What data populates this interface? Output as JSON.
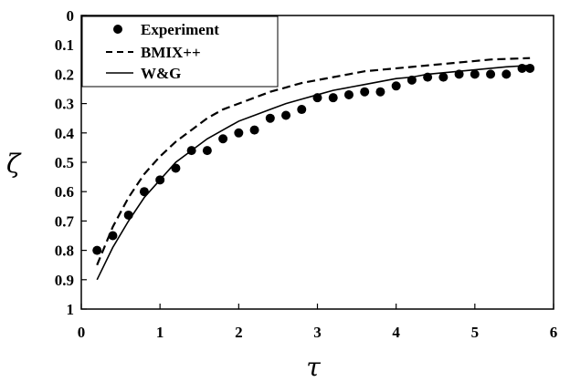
{
  "chart_data": {
    "type": "line",
    "title": "",
    "xlabel": "τ",
    "ylabel": "ζ",
    "xlim": [
      0,
      6
    ],
    "ylim": [
      0,
      1
    ],
    "y_inverted": true,
    "x_ticks": [
      "0",
      "1",
      "2",
      "3",
      "4",
      "5",
      "6"
    ],
    "y_ticks": [
      "0",
      "0.1",
      "0.2",
      "0.3",
      "0.4",
      "0.5",
      "0.6",
      "0.7",
      "0.8",
      "0.9",
      "1"
    ],
    "grid": false,
    "legend_position": "top-left",
    "series": [
      {
        "name": "Experiment",
        "style": "markers",
        "x": [
          0.2,
          0.4,
          0.6,
          0.8,
          1.0,
          1.2,
          1.4,
          1.6,
          1.8,
          2.0,
          2.2,
          2.4,
          2.6,
          2.8,
          3.0,
          3.2,
          3.4,
          3.6,
          3.8,
          4.0,
          4.2,
          4.4,
          4.6,
          4.8,
          5.0,
          5.2,
          5.4,
          5.6,
          5.7
        ],
        "y": [
          0.8,
          0.75,
          0.68,
          0.6,
          0.56,
          0.52,
          0.46,
          0.46,
          0.42,
          0.4,
          0.39,
          0.35,
          0.34,
          0.32,
          0.28,
          0.28,
          0.27,
          0.26,
          0.26,
          0.24,
          0.22,
          0.21,
          0.21,
          0.2,
          0.2,
          0.2,
          0.2,
          0.18,
          0.18
        ]
      },
      {
        "name": "BMIX++",
        "style": "dashed",
        "x": [
          0.2,
          0.4,
          0.6,
          0.8,
          1.0,
          1.2,
          1.4,
          1.6,
          1.8,
          2.0,
          2.2,
          2.4,
          2.6,
          2.8,
          3.0,
          3.2,
          3.4,
          3.6,
          3.8,
          4.0,
          4.2,
          4.4,
          4.6,
          4.8,
          5.0,
          5.2,
          5.4,
          5.7
        ],
        "y": [
          0.85,
          0.72,
          0.62,
          0.54,
          0.48,
          0.43,
          0.39,
          0.35,
          0.32,
          0.3,
          0.28,
          0.26,
          0.245,
          0.23,
          0.22,
          0.21,
          0.2,
          0.19,
          0.185,
          0.18,
          0.175,
          0.17,
          0.165,
          0.16,
          0.155,
          0.15,
          0.148,
          0.145
        ]
      },
      {
        "name": "W&G",
        "style": "solid",
        "x": [
          0.2,
          0.4,
          0.6,
          0.8,
          1.0,
          1.2,
          1.4,
          1.6,
          1.8,
          2.0,
          2.2,
          2.4,
          2.6,
          2.8,
          3.0,
          3.2,
          3.4,
          3.6,
          3.8,
          4.0,
          4.2,
          4.4,
          4.6,
          4.8,
          5.0,
          5.2,
          5.4,
          5.7
        ],
        "y": [
          0.9,
          0.79,
          0.7,
          0.62,
          0.56,
          0.5,
          0.46,
          0.42,
          0.39,
          0.36,
          0.34,
          0.32,
          0.3,
          0.285,
          0.27,
          0.255,
          0.245,
          0.235,
          0.225,
          0.215,
          0.21,
          0.2,
          0.195,
          0.19,
          0.185,
          0.18,
          0.175,
          0.17
        ]
      }
    ]
  }
}
